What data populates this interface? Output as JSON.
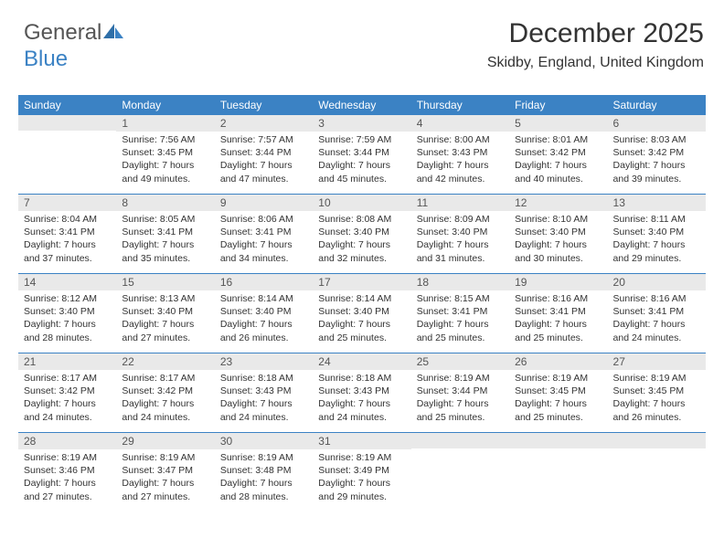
{
  "logo": {
    "part1": "General",
    "part2": "Blue"
  },
  "header": {
    "month_title": "December 2025",
    "location": "Skidby, England, United Kingdom"
  },
  "colors": {
    "header_bg": "#3b82c4",
    "header_fg": "#ffffff",
    "daynum_bg": "#e9e9e9",
    "text": "#333333",
    "rule": "#3b82c4"
  },
  "day_names": [
    "Sunday",
    "Monday",
    "Tuesday",
    "Wednesday",
    "Thursday",
    "Friday",
    "Saturday"
  ],
  "weeks": [
    [
      {
        "day": "",
        "lines": [
          "",
          "",
          "",
          ""
        ]
      },
      {
        "day": "1",
        "lines": [
          "Sunrise: 7:56 AM",
          "Sunset: 3:45 PM",
          "Daylight: 7 hours",
          "and 49 minutes."
        ]
      },
      {
        "day": "2",
        "lines": [
          "Sunrise: 7:57 AM",
          "Sunset: 3:44 PM",
          "Daylight: 7 hours",
          "and 47 minutes."
        ]
      },
      {
        "day": "3",
        "lines": [
          "Sunrise: 7:59 AM",
          "Sunset: 3:44 PM",
          "Daylight: 7 hours",
          "and 45 minutes."
        ]
      },
      {
        "day": "4",
        "lines": [
          "Sunrise: 8:00 AM",
          "Sunset: 3:43 PM",
          "Daylight: 7 hours",
          "and 42 minutes."
        ]
      },
      {
        "day": "5",
        "lines": [
          "Sunrise: 8:01 AM",
          "Sunset: 3:42 PM",
          "Daylight: 7 hours",
          "and 40 minutes."
        ]
      },
      {
        "day": "6",
        "lines": [
          "Sunrise: 8:03 AM",
          "Sunset: 3:42 PM",
          "Daylight: 7 hours",
          "and 39 minutes."
        ]
      }
    ],
    [
      {
        "day": "7",
        "lines": [
          "Sunrise: 8:04 AM",
          "Sunset: 3:41 PM",
          "Daylight: 7 hours",
          "and 37 minutes."
        ]
      },
      {
        "day": "8",
        "lines": [
          "Sunrise: 8:05 AM",
          "Sunset: 3:41 PM",
          "Daylight: 7 hours",
          "and 35 minutes."
        ]
      },
      {
        "day": "9",
        "lines": [
          "Sunrise: 8:06 AM",
          "Sunset: 3:41 PM",
          "Daylight: 7 hours",
          "and 34 minutes."
        ]
      },
      {
        "day": "10",
        "lines": [
          "Sunrise: 8:08 AM",
          "Sunset: 3:40 PM",
          "Daylight: 7 hours",
          "and 32 minutes."
        ]
      },
      {
        "day": "11",
        "lines": [
          "Sunrise: 8:09 AM",
          "Sunset: 3:40 PM",
          "Daylight: 7 hours",
          "and 31 minutes."
        ]
      },
      {
        "day": "12",
        "lines": [
          "Sunrise: 8:10 AM",
          "Sunset: 3:40 PM",
          "Daylight: 7 hours",
          "and 30 minutes."
        ]
      },
      {
        "day": "13",
        "lines": [
          "Sunrise: 8:11 AM",
          "Sunset: 3:40 PM",
          "Daylight: 7 hours",
          "and 29 minutes."
        ]
      }
    ],
    [
      {
        "day": "14",
        "lines": [
          "Sunrise: 8:12 AM",
          "Sunset: 3:40 PM",
          "Daylight: 7 hours",
          "and 28 minutes."
        ]
      },
      {
        "day": "15",
        "lines": [
          "Sunrise: 8:13 AM",
          "Sunset: 3:40 PM",
          "Daylight: 7 hours",
          "and 27 minutes."
        ]
      },
      {
        "day": "16",
        "lines": [
          "Sunrise: 8:14 AM",
          "Sunset: 3:40 PM",
          "Daylight: 7 hours",
          "and 26 minutes."
        ]
      },
      {
        "day": "17",
        "lines": [
          "Sunrise: 8:14 AM",
          "Sunset: 3:40 PM",
          "Daylight: 7 hours",
          "and 25 minutes."
        ]
      },
      {
        "day": "18",
        "lines": [
          "Sunrise: 8:15 AM",
          "Sunset: 3:41 PM",
          "Daylight: 7 hours",
          "and 25 minutes."
        ]
      },
      {
        "day": "19",
        "lines": [
          "Sunrise: 8:16 AM",
          "Sunset: 3:41 PM",
          "Daylight: 7 hours",
          "and 25 minutes."
        ]
      },
      {
        "day": "20",
        "lines": [
          "Sunrise: 8:16 AM",
          "Sunset: 3:41 PM",
          "Daylight: 7 hours",
          "and 24 minutes."
        ]
      }
    ],
    [
      {
        "day": "21",
        "lines": [
          "Sunrise: 8:17 AM",
          "Sunset: 3:42 PM",
          "Daylight: 7 hours",
          "and 24 minutes."
        ]
      },
      {
        "day": "22",
        "lines": [
          "Sunrise: 8:17 AM",
          "Sunset: 3:42 PM",
          "Daylight: 7 hours",
          "and 24 minutes."
        ]
      },
      {
        "day": "23",
        "lines": [
          "Sunrise: 8:18 AM",
          "Sunset: 3:43 PM",
          "Daylight: 7 hours",
          "and 24 minutes."
        ]
      },
      {
        "day": "24",
        "lines": [
          "Sunrise: 8:18 AM",
          "Sunset: 3:43 PM",
          "Daylight: 7 hours",
          "and 24 minutes."
        ]
      },
      {
        "day": "25",
        "lines": [
          "Sunrise: 8:19 AM",
          "Sunset: 3:44 PM",
          "Daylight: 7 hours",
          "and 25 minutes."
        ]
      },
      {
        "day": "26",
        "lines": [
          "Sunrise: 8:19 AM",
          "Sunset: 3:45 PM",
          "Daylight: 7 hours",
          "and 25 minutes."
        ]
      },
      {
        "day": "27",
        "lines": [
          "Sunrise: 8:19 AM",
          "Sunset: 3:45 PM",
          "Daylight: 7 hours",
          "and 26 minutes."
        ]
      }
    ],
    [
      {
        "day": "28",
        "lines": [
          "Sunrise: 8:19 AM",
          "Sunset: 3:46 PM",
          "Daylight: 7 hours",
          "and 27 minutes."
        ]
      },
      {
        "day": "29",
        "lines": [
          "Sunrise: 8:19 AM",
          "Sunset: 3:47 PM",
          "Daylight: 7 hours",
          "and 27 minutes."
        ]
      },
      {
        "day": "30",
        "lines": [
          "Sunrise: 8:19 AM",
          "Sunset: 3:48 PM",
          "Daylight: 7 hours",
          "and 28 minutes."
        ]
      },
      {
        "day": "31",
        "lines": [
          "Sunrise: 8:19 AM",
          "Sunset: 3:49 PM",
          "Daylight: 7 hours",
          "and 29 minutes."
        ]
      },
      {
        "day": "",
        "lines": [
          "",
          "",
          "",
          ""
        ]
      },
      {
        "day": "",
        "lines": [
          "",
          "",
          "",
          ""
        ]
      },
      {
        "day": "",
        "lines": [
          "",
          "",
          "",
          ""
        ]
      }
    ]
  ]
}
